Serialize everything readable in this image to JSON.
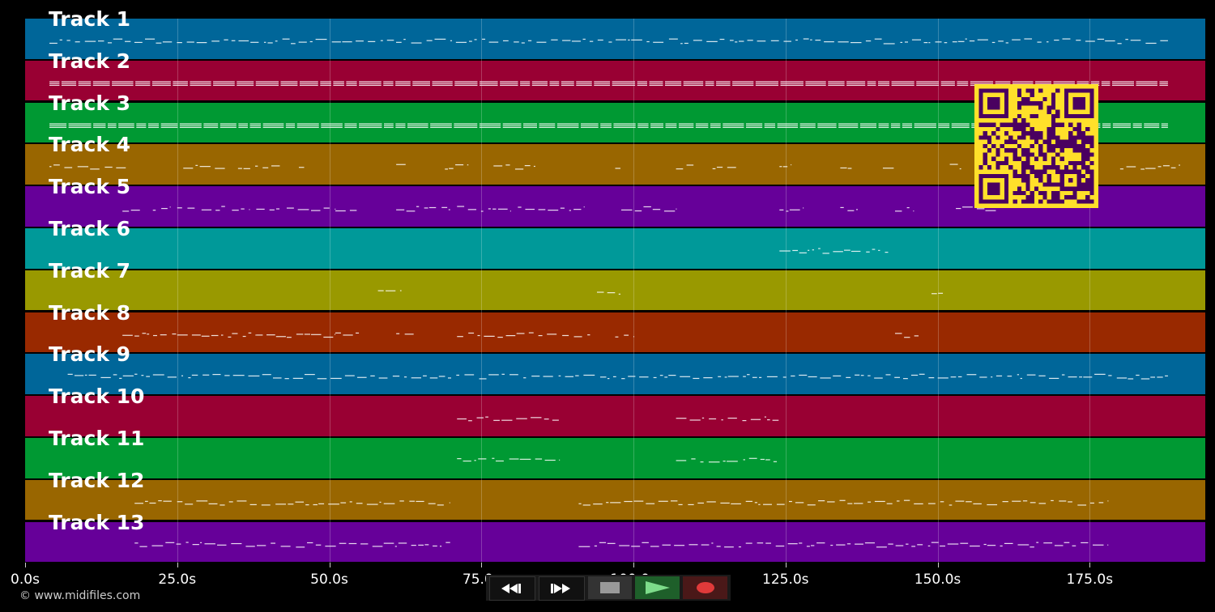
{
  "tracks": [
    {
      "label": "Track 1",
      "color": "#006699"
    },
    {
      "label": "Track 2",
      "color": "#990033"
    },
    {
      "label": "Track 3",
      "color": "#009933"
    },
    {
      "label": "Track 4",
      "color": "#996600"
    },
    {
      "label": "Track 5",
      "color": "#660099"
    },
    {
      "label": "Track 6",
      "color": "#009999"
    },
    {
      "label": "Track 7",
      "color": "#999900"
    },
    {
      "label": "Track 8",
      "color": "#992900"
    },
    {
      "label": "Track 9",
      "color": "#006699"
    },
    {
      "label": "Track 10",
      "color": "#990033"
    },
    {
      "label": "Track 11",
      "color": "#009933"
    },
    {
      "label": "Track 12",
      "color": "#996600"
    },
    {
      "label": "Track 13",
      "color": "#660099"
    }
  ],
  "timeline": {
    "ticks": [
      "0.0s",
      "25.0s",
      "50.0s",
      "75.0s",
      "100.0s",
      "125.0s",
      "150.0s",
      "175.0s"
    ],
    "tick_values": [
      0,
      25,
      50,
      75,
      100,
      125,
      150,
      175
    ],
    "max_seconds": 194
  },
  "transport": {
    "rewind_icon": "rewind-icon",
    "ffwd_icon": "fast-forward-icon",
    "stop_icon": "stop-icon",
    "play_icon": "play-icon",
    "record_icon": "record-icon",
    "play_color": "#7ddc8a",
    "record_color": "#e03a3a"
  },
  "copyright": "© www.midifiles.com",
  "qr": {
    "fg": "#4a0060",
    "bg": "#ffe02a"
  }
}
